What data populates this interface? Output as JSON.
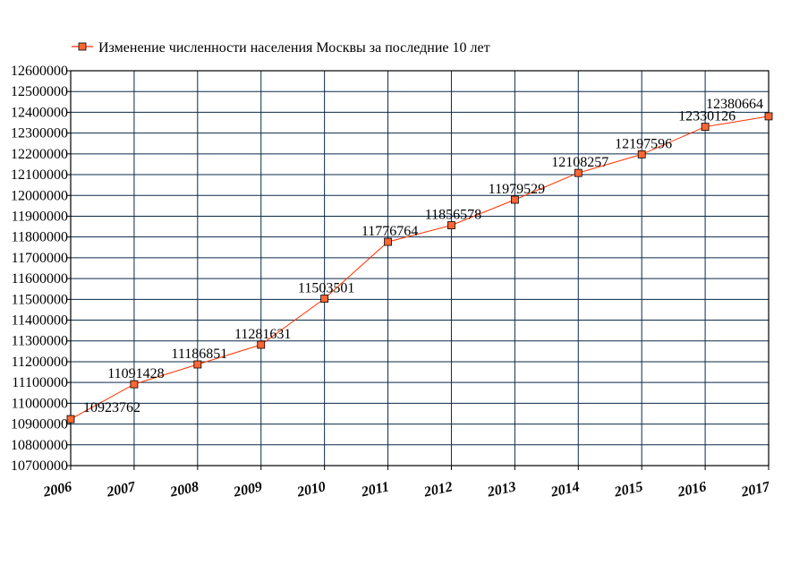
{
  "chart_data": {
    "type": "line",
    "title": "",
    "xlabel": "",
    "ylabel": "",
    "categories": [
      "2006",
      "2007",
      "2008",
      "2009",
      "2010",
      "2011",
      "2012",
      "2013",
      "2014",
      "2015",
      "2016",
      "2017"
    ],
    "series": [
      {
        "name": "Изменение численности населения Москвы за последние 10 лет",
        "values": [
          10923762,
          11091428,
          11186851,
          11281631,
          11503501,
          11776764,
          11856578,
          11979529,
          12108257,
          12197596,
          12330126,
          12380664
        ],
        "labels": [
          "10923762",
          "11091428",
          "11186851",
          "11281631",
          "11503501",
          "11776764",
          "11856578",
          "11979529",
          "12108257",
          "12197596",
          "12330126",
          "12380664"
        ]
      }
    ],
    "yticks": [
      "10700000",
      "10800000",
      "10900000",
      "11000000",
      "11100000",
      "11200000",
      "11300000",
      "11400000",
      "11500000",
      "11600000",
      "11700000",
      "11800000",
      "11900000",
      "12000000",
      "12100000",
      "12200000",
      "12300000",
      "12400000",
      "12500000",
      "12600000"
    ],
    "ylim": [
      10700000,
      12600000
    ],
    "grid": true,
    "legend_position": "top-left",
    "colors": {
      "line": "#ff3300",
      "marker_fill": "#ff6633",
      "marker_stroke": "#000000",
      "grid": "#0a2a4a"
    }
  }
}
